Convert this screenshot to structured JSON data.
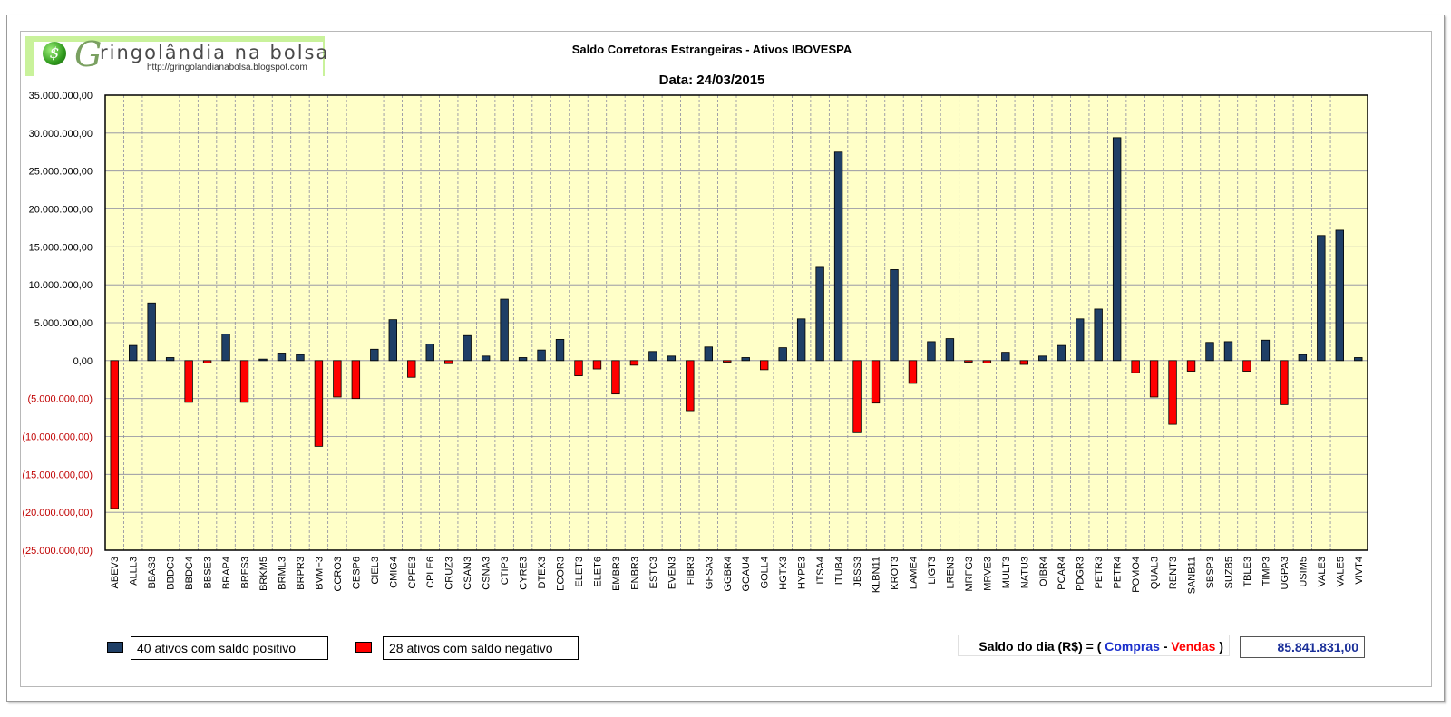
{
  "header": {
    "logo_initial": "G",
    "logo_mark": "$",
    "logo_title": "ringolândia na bolsa",
    "logo_url": "http://gringolandianabolsa.blogspot.com",
    "title": "Saldo Corretoras Estrangeiras - Ativos IBOVESPA",
    "date_label": "Data:  24/03/2015"
  },
  "colors": {
    "positive": "#1f3f66",
    "negative": "#ff0000",
    "plot_background": "#ffffc8",
    "negative_tick_text": "#c00000",
    "saldo_value": "#1a2f99"
  },
  "chart_data": {
    "type": "bar",
    "ylim": [
      -25000000,
      35000000
    ],
    "ytick_step": 5000000,
    "y_tick_labels": [
      "35.000.000,00",
      "30.000.000,00",
      "25.000.000,00",
      "20.000.000,00",
      "15.000.000,00",
      "10.000.000,00",
      "5.000.000,00",
      "0,00",
      "(5.000.000,00)",
      "(10.000.000,00)",
      "(15.000.000,00)",
      "(20.000.000,00)",
      "(25.000.000,00)"
    ],
    "grid": true,
    "categories": [
      "ABEV3",
      "ALLL3",
      "BBAS3",
      "BBDC3",
      "BBDC4",
      "BBSE3",
      "BRAP4",
      "BRFS3",
      "BRKM5",
      "BRML3",
      "BRPR3",
      "BVMF3",
      "CCRO3",
      "CESP6",
      "CIEL3",
      "CMIG4",
      "CPFE3",
      "CPLE6",
      "CRUZ3",
      "CSAN3",
      "CSNA3",
      "CTIP3",
      "CYRE3",
      "DTEX3",
      "ECOR3",
      "ELET3",
      "ELET6",
      "EMBR3",
      "ENBR3",
      "ESTC3",
      "EVEN3",
      "FIBR3",
      "GFSA3",
      "GGBR4",
      "GOAU4",
      "GOLL4",
      "HGTX3",
      "HYPE3",
      "ITSA4",
      "ITUB4",
      "JBSS3",
      "KLBN11",
      "KROT3",
      "LAME4",
      "LIGT3",
      "LREN3",
      "MRFG3",
      "MRVE3",
      "MULT3",
      "NATU3",
      "OIBR4",
      "PCAR4",
      "PDGR3",
      "PETR3",
      "PETR4",
      "POMO4",
      "QUAL3",
      "RENT3",
      "SANB11",
      "SBSP3",
      "SUZB5",
      "TBLE3",
      "TIMP3",
      "UGPA3",
      "USIM5",
      "VALE3",
      "VALE5",
      "VIVT4"
    ],
    "values": [
      -19500000,
      2000000,
      7600000,
      400000,
      -5500000,
      -300000,
      3500000,
      -5500000,
      200000,
      1000000,
      800000,
      -11300000,
      -4800000,
      -5000000,
      1500000,
      5400000,
      -2200000,
      2200000,
      -400000,
      3300000,
      600000,
      8100000,
      400000,
      1400000,
      2800000,
      -2000000,
      -1100000,
      -4400000,
      -600000,
      1200000,
      600000,
      -6600000,
      1800000,
      -200000,
      400000,
      -1200000,
      1700000,
      5500000,
      12300000,
      27500000,
      -9500000,
      -5600000,
      12000000,
      -3000000,
      2500000,
      2900000,
      -200000,
      -300000,
      1100000,
      -500000,
      600000,
      2000000,
      5500000,
      6800000,
      29400000,
      -1600000,
      -4800000,
      -8400000,
      -1400000,
      2400000,
      2500000,
      -1400000,
      2700000,
      -5800000,
      800000,
      16500000,
      17200000,
      400000
    ]
  },
  "legend": {
    "positive_label": "40 ativos com saldo positivo",
    "negative_label": "28 ativos com saldo negativo"
  },
  "saldo": {
    "label_prefix": "Saldo do dia (R$) = ( ",
    "compras": "Compras",
    "separator": " - ",
    "vendas": "Vendas",
    "label_suffix": "  )",
    "value": "85.841.831,00"
  }
}
